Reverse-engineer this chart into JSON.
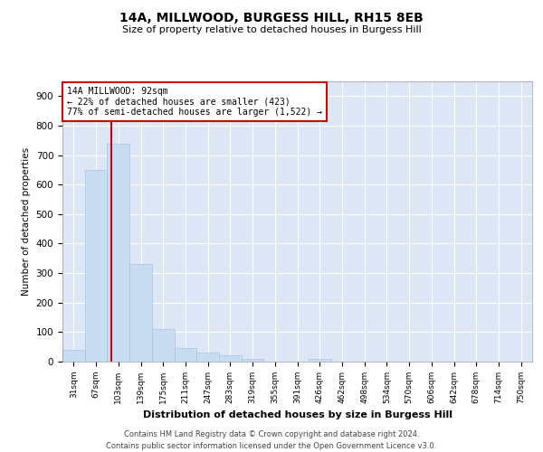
{
  "title1": "14A, MILLWOOD, BURGESS HILL, RH15 8EB",
  "title2": "Size of property relative to detached houses in Burgess Hill",
  "xlabel": "Distribution of detached houses by size in Burgess Hill",
  "ylabel": "Number of detached properties",
  "categories": [
    "31sqm",
    "67sqm",
    "103sqm",
    "139sqm",
    "175sqm",
    "211sqm",
    "247sqm",
    "283sqm",
    "319sqm",
    "355sqm",
    "391sqm",
    "426sqm",
    "462sqm",
    "498sqm",
    "534sqm",
    "570sqm",
    "606sqm",
    "642sqm",
    "678sqm",
    "714sqm",
    "750sqm"
  ],
  "values": [
    40,
    650,
    740,
    330,
    110,
    45,
    30,
    20,
    10,
    0,
    0,
    10,
    0,
    0,
    0,
    0,
    0,
    0,
    0,
    0,
    0
  ],
  "bar_color": "#c9ddf2",
  "bar_edge_color": "#a8c4e0",
  "property_label": "14A MILLWOOD: 92sqm",
  "annotation_line1": "← 22% of detached houses are smaller (423)",
  "annotation_line2": "77% of semi-detached houses are larger (1,522) →",
  "vline_color": "#cc0000",
  "ylim": [
    0,
    950
  ],
  "yticks": [
    0,
    100,
    200,
    300,
    400,
    500,
    600,
    700,
    800,
    900
  ],
  "background_color": "#dce6f5",
  "grid_color": "#ffffff",
  "footer1": "Contains HM Land Registry data © Crown copyright and database right 2024.",
  "footer2": "Contains public sector information licensed under the Open Government Licence v3.0."
}
